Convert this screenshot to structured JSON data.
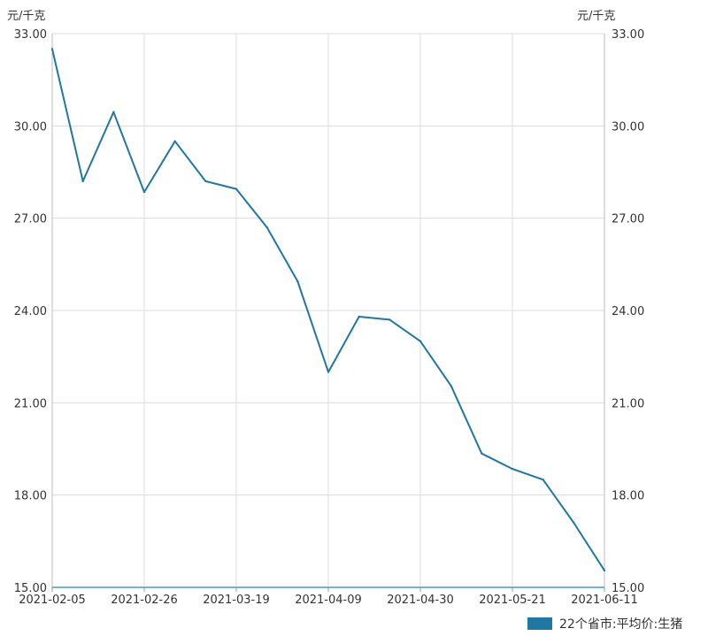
{
  "chart_data": {
    "type": "line",
    "y_unit_left": "元/千克",
    "y_unit_right": "元/千克",
    "ylim": [
      15.0,
      33.0
    ],
    "y_ticks": [
      "15.00",
      "18.00",
      "21.00",
      "24.00",
      "27.00",
      "30.00",
      "33.00"
    ],
    "x_ticks": [
      "2021-02-05",
      "2021-02-26",
      "2021-03-19",
      "2021-04-09",
      "2021-04-30",
      "2021-05-21",
      "2021-06-11"
    ],
    "grid": true,
    "legend_position": "bottom-right",
    "x": [
      "2021-02-05",
      "2021-02-12",
      "2021-02-19",
      "2021-02-26",
      "2021-03-05",
      "2021-03-12",
      "2021-03-19",
      "2021-03-26",
      "2021-04-02",
      "2021-04-09",
      "2021-04-16",
      "2021-04-23",
      "2021-04-30",
      "2021-05-07",
      "2021-05-14",
      "2021-05-21",
      "2021-05-28",
      "2021-06-04",
      "2021-06-11"
    ],
    "series": [
      {
        "name": "22个省市:平均价:生猪",
        "color": "#1f77a3",
        "values": [
          32.5,
          28.2,
          30.45,
          27.85,
          29.5,
          28.2,
          27.95,
          26.7,
          24.95,
          22.0,
          23.8,
          23.7,
          23.0,
          21.55,
          19.35,
          18.85,
          18.5,
          17.1,
          15.55
        ]
      }
    ]
  }
}
